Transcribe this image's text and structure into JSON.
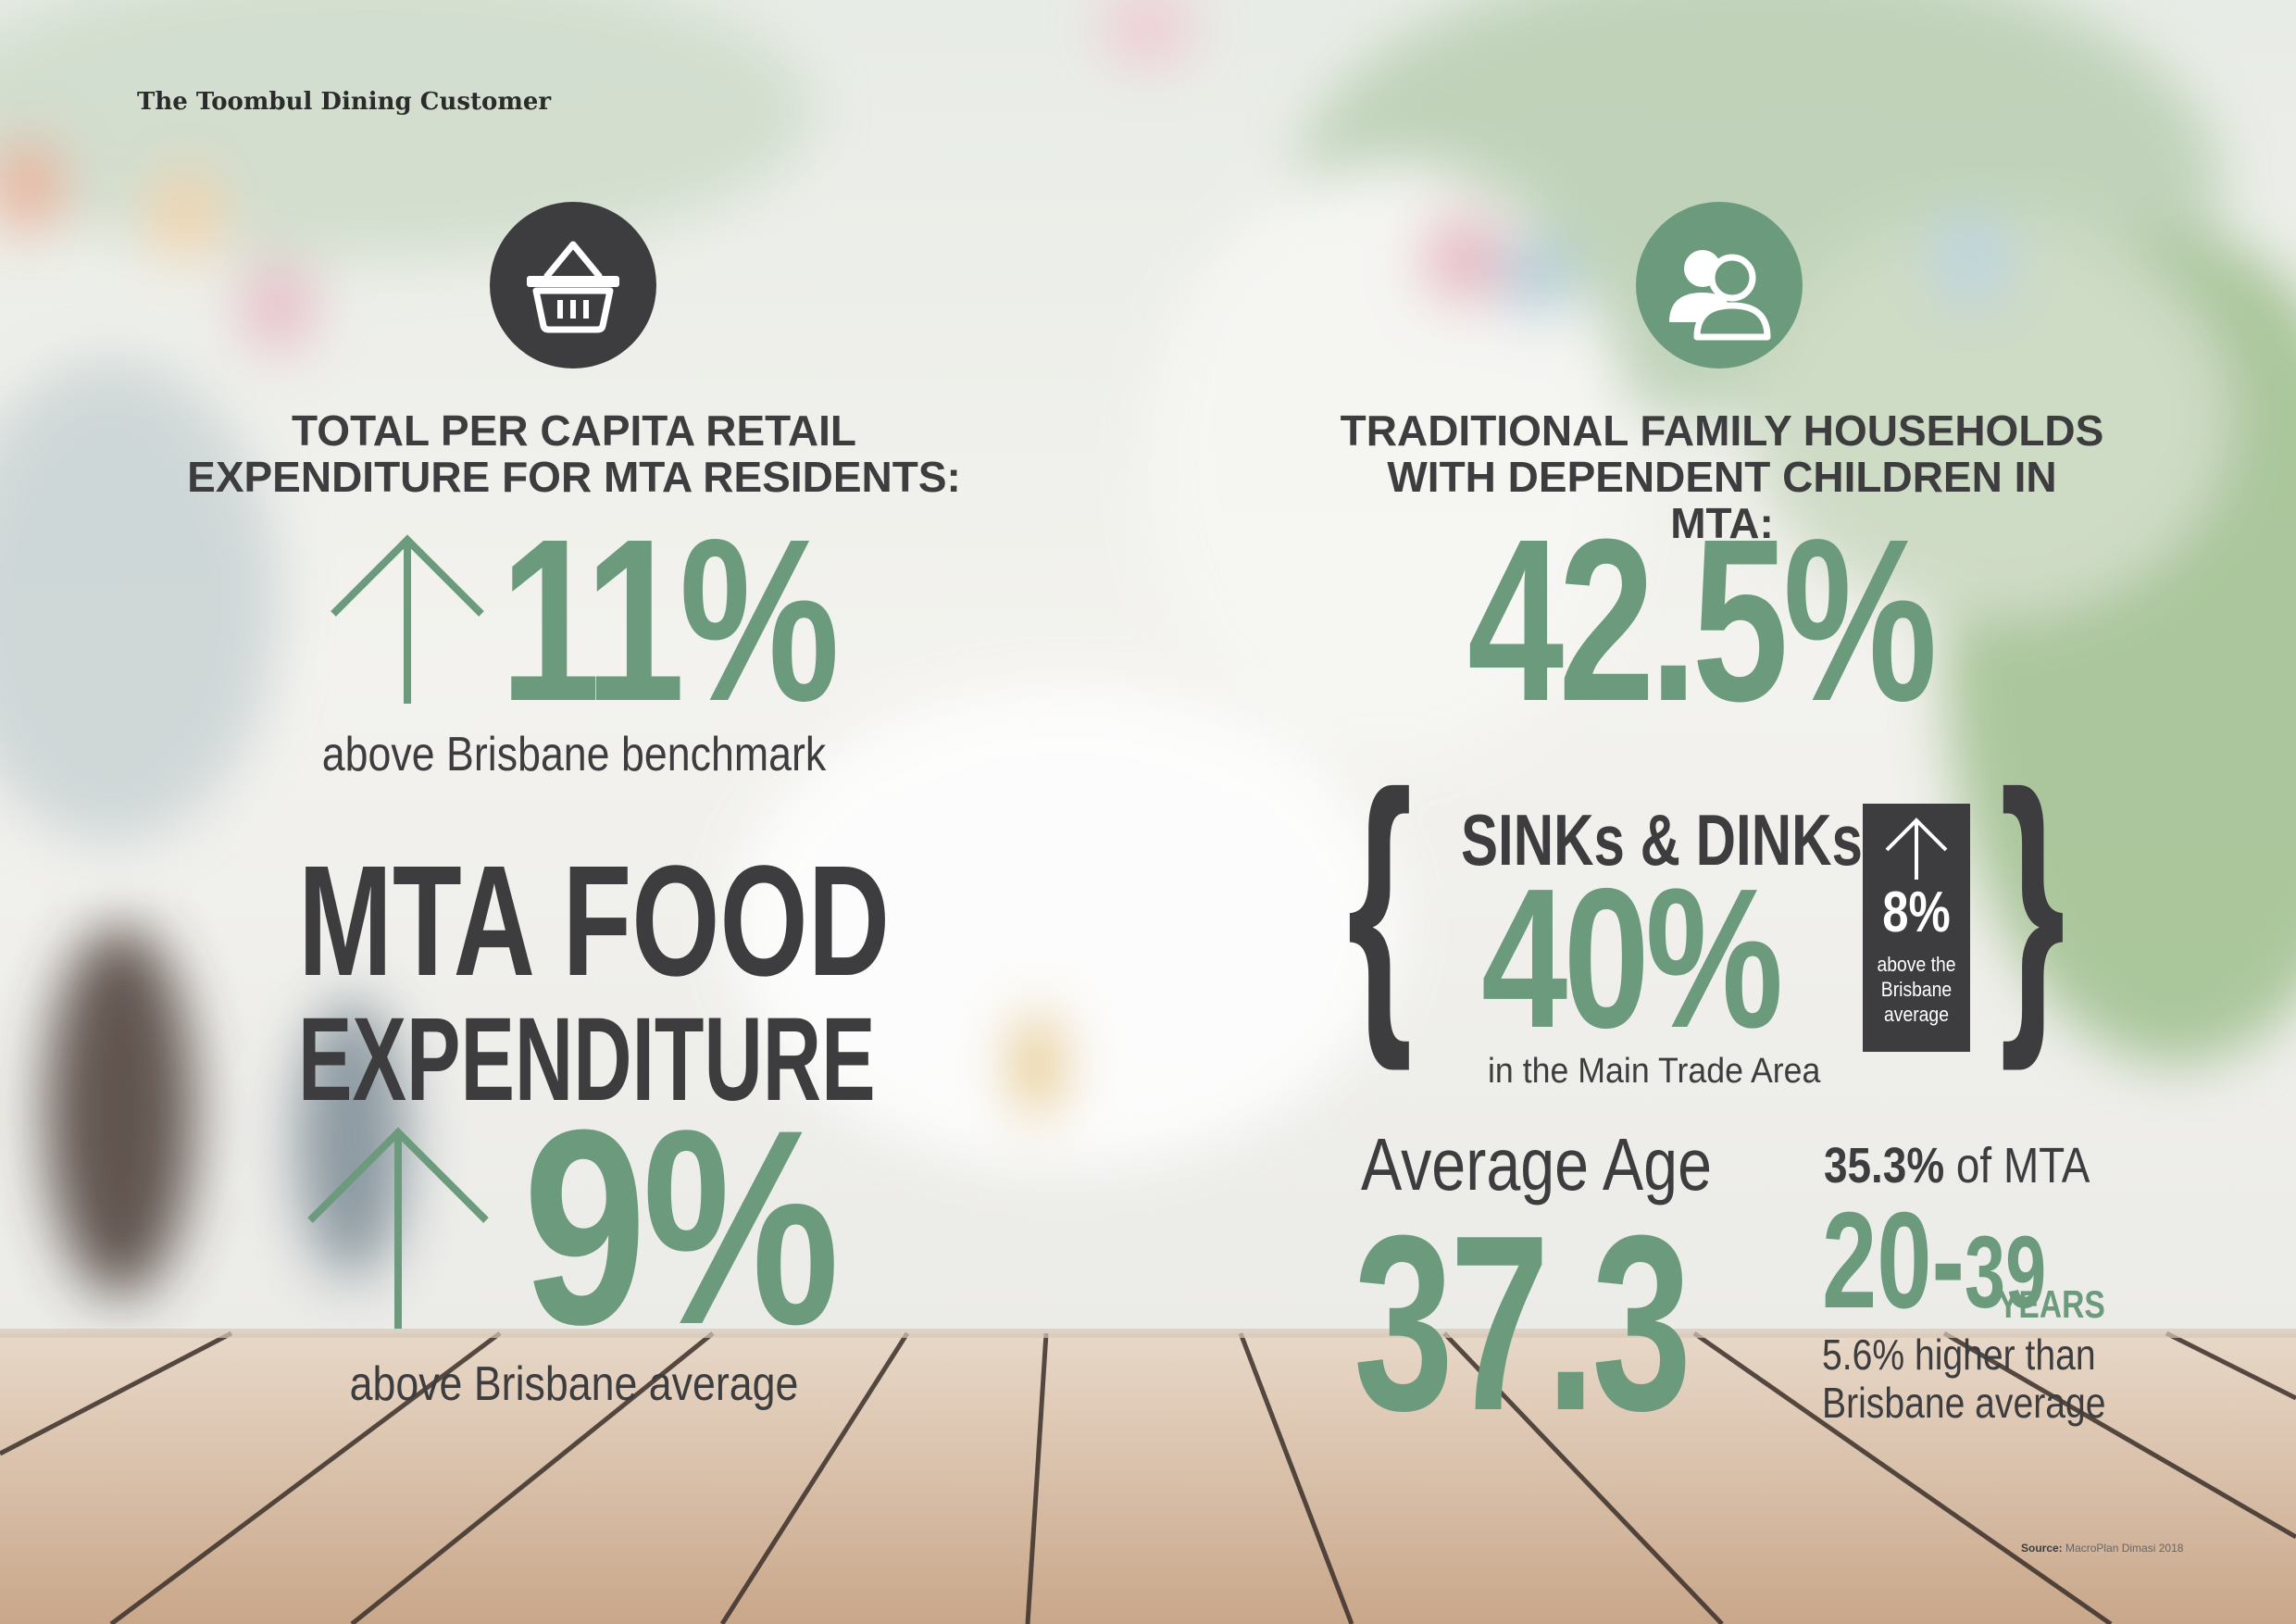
{
  "colors": {
    "accent": "#6c9a7c",
    "dark": "#3d3d3f"
  },
  "header": {
    "title": "The Toombul Dining Customer"
  },
  "left": {
    "icon": "shopping-basket-icon",
    "heading_line1": "TOTAL PER CAPITA RETAIL",
    "heading_line2": "EXPENDITURE FOR MTA RESIDENTS:",
    "stat_value": "11%",
    "stat_caption": "above Brisbane benchmark",
    "food_title_line1": "MTA FOOD",
    "food_title_line2": "EXPENDITURE",
    "food_value": "9%",
    "food_caption": "above Brisbane average"
  },
  "right": {
    "icon": "people-icon",
    "heading_line1": "TRADITIONAL FAMILY HOUSEHOLDS",
    "heading_line2": "WITH DEPENDENT CHILDREN IN MTA:",
    "stat_value": "42.5%",
    "sinks_title": "SINKs & DINKs",
    "sinks_value": "40%",
    "sinks_caption": "in the Main Trade Area",
    "badge_value": "8%",
    "badge_line1": "above the",
    "badge_line2": "Brisbane",
    "badge_line3": "average",
    "age_label": "Average Age",
    "age_value": "37.3",
    "pct_bold": "35.3%",
    "pct_rest": " of MTA",
    "range_a": "20",
    "range_dash": "-",
    "range_b": "39",
    "range_unit": "YEARS",
    "higher_line1": "5.6% higher than",
    "higher_line2": "Brisbane average"
  },
  "footer": {
    "source_label": "Source:",
    "source_text": " MacroPlan Dimasi 2018"
  }
}
